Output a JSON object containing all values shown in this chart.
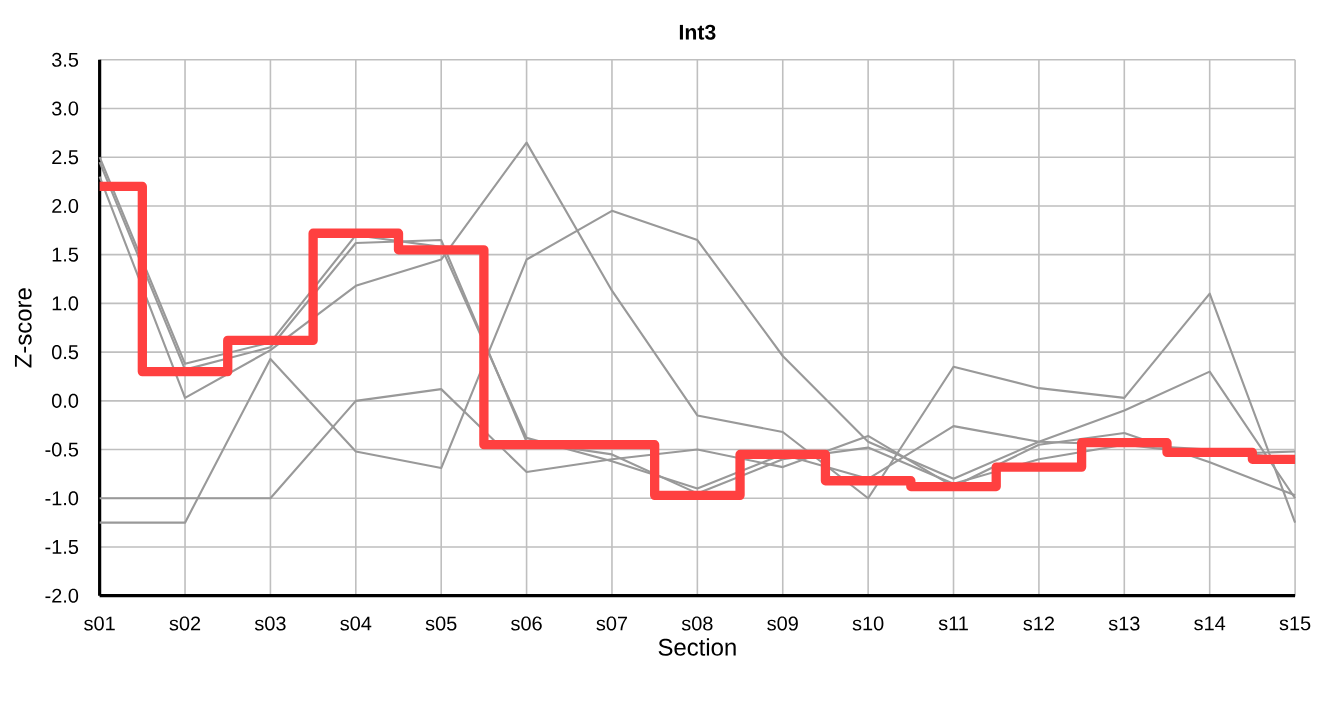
{
  "chart_data": {
    "type": "line",
    "title": "Int3",
    "xlabel": "Section",
    "ylabel": "Z-score",
    "categories": [
      "s01",
      "s02",
      "s03",
      "s04",
      "s05",
      "s06",
      "s07",
      "s08",
      "s09",
      "s10",
      "s11",
      "s12",
      "s13",
      "s14",
      "s15"
    ],
    "series": [
      {
        "type": "line",
        "color": "#999999",
        "values": [
          2.3,
          0.03,
          0.52,
          1.18,
          1.45,
          2.65,
          1.13,
          -0.15,
          -0.32,
          -1.0,
          0.35,
          0.13,
          0.03,
          1.1,
          -1.25
        ]
      },
      {
        "type": "line",
        "color": "#999999",
        "values": [
          -1.25,
          -1.25,
          0.43,
          -0.52,
          -0.69,
          1.45,
          1.95,
          1.65,
          0.46,
          -0.42,
          -0.8,
          -0.42,
          -0.1,
          0.3,
          -1.0
        ]
      },
      {
        "type": "line",
        "color": "#999999",
        "values": [
          -1.0,
          -1.0,
          -1.0,
          0.0,
          0.12,
          -0.73,
          -0.6,
          -0.5,
          -0.68,
          -0.36,
          -0.88,
          -0.45,
          -0.33,
          -0.63,
          -0.97
        ]
      },
      {
        "type": "line",
        "color": "#999999",
        "values": [
          2.5,
          0.38,
          0.6,
          1.7,
          1.58,
          -0.38,
          -0.62,
          -0.9,
          -0.55,
          -0.8,
          -0.26,
          -0.42,
          -0.45,
          -0.55,
          -0.52
        ]
      },
      {
        "type": "line",
        "color": "#999999",
        "values": [
          2.45,
          0.32,
          0.55,
          1.62,
          1.65,
          -0.42,
          -0.55,
          -0.95,
          -0.6,
          -0.48,
          -0.85,
          -0.6,
          -0.45,
          -0.5,
          -0.6
        ]
      },
      {
        "type": "step",
        "color": "#ff4040",
        "values": [
          2.2,
          0.3,
          0.62,
          1.72,
          1.55,
          -0.45,
          -0.45,
          -0.97,
          -0.55,
          -0.82,
          -0.88,
          -0.68,
          -0.43,
          -0.53,
          -0.6
        ]
      }
    ],
    "ylim": [
      -2.0,
      3.5
    ],
    "yticks": [
      {
        "value": -2,
        "label": "-2.0"
      },
      -1.5,
      {
        "value": -1,
        "label": "-1.0"
      },
      -0.5,
      {
        "value": 0,
        "label": "0.0"
      },
      0.5,
      {
        "value": 1,
        "label": "1.0"
      },
      1.5,
      {
        "value": 2,
        "label": "2.0"
      },
      2.5,
      {
        "value": 3,
        "label": "3.0"
      },
      3.5
    ],
    "grid": true
  }
}
